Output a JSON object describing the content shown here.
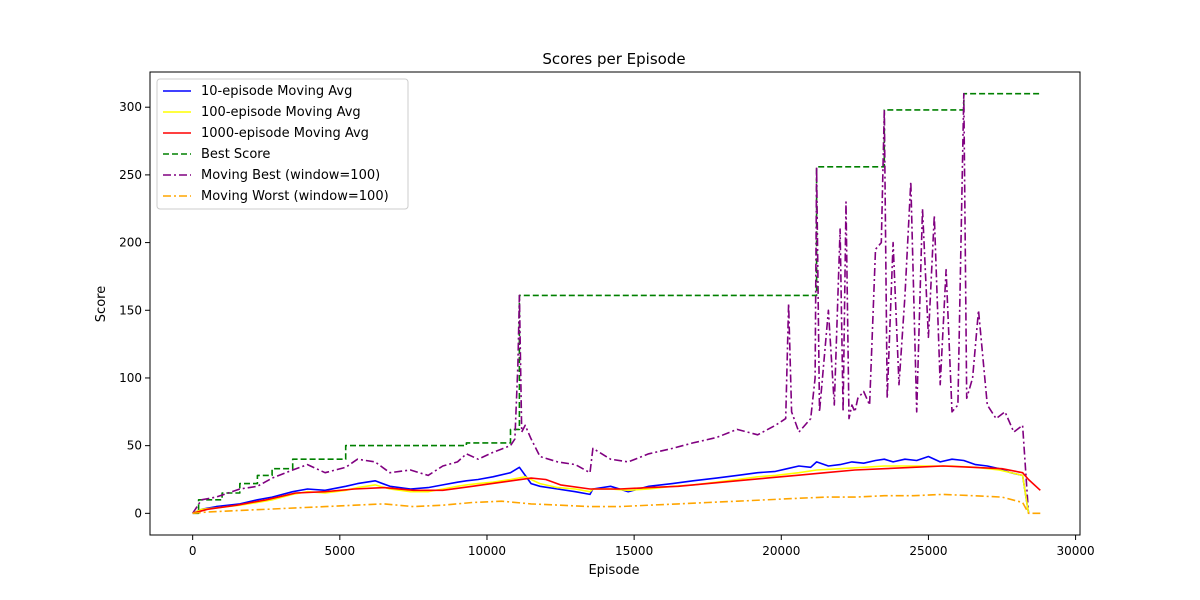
{
  "chart_data": {
    "type": "line",
    "title": "Scores per Episode",
    "xlabel": "Episode",
    "ylabel": "Score",
    "xlim": [
      -1450,
      30150
    ],
    "ylim": [
      -16,
      326
    ],
    "xticks": [
      0,
      5000,
      10000,
      15000,
      20000,
      25000,
      30000
    ],
    "yticks": [
      0,
      50,
      100,
      150,
      200,
      250,
      300
    ],
    "legend_position": "top-left",
    "series": [
      {
        "name": "Best Score",
        "color": "#008000",
        "dash": "dashed",
        "x": [
          0,
          200,
          200,
          1000,
          1000,
          1600,
          1600,
          2200,
          2200,
          2700,
          2700,
          3400,
          3400,
          5200,
          5200,
          9300,
          9300,
          10800,
          10800,
          11100,
          11100,
          21200,
          21200,
          23500,
          23500,
          26200,
          26200,
          28800
        ],
        "y": [
          0,
          0,
          10,
          10,
          15,
          15,
          22,
          22,
          28,
          28,
          33,
          33,
          40,
          40,
          50,
          50,
          52,
          52,
          62,
          62,
          161,
          161,
          256,
          256,
          298,
          298,
          310,
          310
        ]
      },
      {
        "name": "Moving Best (window=100)",
        "color": "#800080",
        "dash": "dashdot",
        "x": [
          0,
          300,
          800,
          1600,
          2200,
          2700,
          3400,
          3900,
          4500,
          5200,
          5600,
          6200,
          6700,
          7400,
          8000,
          8500,
          9000,
          9300,
          9700,
          10200,
          10800,
          10950,
          11050,
          11100,
          11180,
          11300,
          11500,
          11800,
          12400,
          13000,
          13500,
          13600,
          14200,
          14800,
          15500,
          16300,
          17000,
          17800,
          18500,
          19200,
          19800,
          20150,
          20250,
          20350,
          20600,
          21000,
          21150,
          21200,
          21300,
          21600,
          21800,
          22000,
          22100,
          22200,
          22300,
          22400,
          22500,
          22600,
          22800,
          23000,
          23200,
          23400,
          23500,
          23600,
          23800,
          24000,
          24200,
          24400,
          24600,
          24800,
          25000,
          25200,
          25400,
          25600,
          25800,
          26000,
          26200,
          26300,
          26500,
          26700,
          27000,
          27300,
          27600,
          27900,
          28200,
          28400
        ],
        "y": [
          0,
          10,
          12,
          18,
          20,
          26,
          32,
          36,
          30,
          34,
          40,
          38,
          30,
          32,
          28,
          35,
          38,
          44,
          40,
          45,
          50,
          55,
          110,
          161,
          60,
          65,
          55,
          42,
          38,
          36,
          30,
          48,
          40,
          38,
          44,
          48,
          52,
          56,
          62,
          58,
          65,
          70,
          155,
          75,
          60,
          70,
          100,
          256,
          75,
          150,
          80,
          210,
          75,
          230,
          70,
          80,
          75,
          85,
          90,
          80,
          195,
          200,
          298,
          85,
          200,
          95,
          160,
          245,
          75,
          225,
          130,
          220,
          95,
          180,
          75,
          80,
          310,
          85,
          100,
          150,
          80,
          70,
          75,
          60,
          65,
          0
        ]
      },
      {
        "name": "10-episode Moving Avg",
        "color": "#0000ff",
        "dash": "solid",
        "x": [
          0,
          300,
          800,
          1600,
          2200,
          2700,
          3400,
          3900,
          4500,
          5200,
          5600,
          6200,
          6700,
          7400,
          8000,
          8500,
          9000,
          9300,
          9700,
          10200,
          10800,
          11100,
          11300,
          11500,
          11800,
          12400,
          13000,
          13500,
          13600,
          14200,
          14800,
          15500,
          16300,
          17000,
          17800,
          18500,
          19200,
          19800,
          20200,
          20600,
          21000,
          21200,
          21600,
          22000,
          22400,
          22800,
          23200,
          23500,
          23800,
          24200,
          24600,
          25000,
          25400,
          25800,
          26200,
          26600,
          27000,
          27400,
          27800,
          28200,
          28400
        ],
        "y": [
          0,
          3,
          5,
          7,
          10,
          12,
          16,
          18,
          17,
          20,
          22,
          24,
          20,
          18,
          19,
          21,
          23,
          24,
          25,
          27,
          30,
          34,
          28,
          22,
          20,
          18,
          16,
          14,
          18,
          20,
          16,
          20,
          22,
          24,
          26,
          28,
          30,
          31,
          33,
          35,
          34,
          38,
          35,
          36,
          38,
          37,
          39,
          40,
          38,
          40,
          39,
          42,
          38,
          40,
          39,
          36,
          35,
          33,
          30,
          28,
          0
        ]
      },
      {
        "name": "100-episode Moving Avg",
        "color": "#ffff00",
        "dash": "solid",
        "x": [
          0,
          300,
          800,
          1600,
          2200,
          2700,
          3400,
          3900,
          4500,
          5200,
          5600,
          6200,
          6700,
          7400,
          8000,
          8500,
          9000,
          9300,
          9700,
          10200,
          10800,
          11300,
          11800,
          12400,
          13000,
          13500,
          13600,
          14200,
          14800,
          15500,
          16300,
          17000,
          17800,
          18500,
          19200,
          19800,
          20600,
          21200,
          22000,
          22800,
          23500,
          24200,
          25000,
          25800,
          26600,
          27400,
          28200,
          28400
        ],
        "y": [
          0,
          3,
          4,
          6,
          8,
          10,
          14,
          16,
          15,
          17,
          19,
          21,
          18,
          16,
          16,
          18,
          20,
          21,
          22,
          23,
          25,
          27,
          22,
          19,
          18,
          16,
          18,
          18,
          17,
          18,
          20,
          21,
          23,
          25,
          27,
          28,
          30,
          32,
          33,
          34,
          35,
          35,
          35,
          35,
          34,
          32,
          28,
          0
        ]
      },
      {
        "name": "1000-episode Moving Avg",
        "color": "#ff0000",
        "dash": "solid",
        "x": [
          0,
          500,
          1500,
          2500,
          3500,
          4500,
          5500,
          6500,
          7500,
          8500,
          9500,
          10500,
          11500,
          12000,
          12500,
          13500,
          14500,
          15500,
          16500,
          17500,
          18500,
          19500,
          20500,
          21500,
          22500,
          23500,
          24500,
          25500,
          26500,
          27500,
          28200,
          28400,
          28800
        ],
        "y": [
          0,
          3,
          6,
          10,
          15,
          16,
          18,
          19,
          17,
          17,
          20,
          23,
          26,
          25,
          21,
          18,
          18,
          19,
          20,
          22,
          24,
          26,
          28,
          30,
          32,
          33,
          34,
          35,
          34,
          33,
          30,
          25,
          17
        ]
      },
      {
        "name": "Moving Worst (window=100)",
        "color": "#ffa500",
        "dash": "dashdot",
        "x": [
          0,
          500,
          1500,
          2500,
          3500,
          4500,
          5500,
          6500,
          7500,
          8500,
          9500,
          10500,
          11500,
          12500,
          13500,
          14500,
          15500,
          16500,
          17500,
          18500,
          19500,
          20500,
          21500,
          22500,
          23500,
          24500,
          25500,
          26500,
          27500,
          28200,
          28400,
          28800
        ],
        "y": [
          0,
          1,
          2,
          3,
          4,
          5,
          6,
          7,
          5,
          6,
          8,
          9,
          7,
          6,
          5,
          5,
          6,
          7,
          8,
          9,
          10,
          11,
          12,
          12,
          13,
          13,
          14,
          13,
          12,
          8,
          0,
          0
        ]
      }
    ]
  }
}
